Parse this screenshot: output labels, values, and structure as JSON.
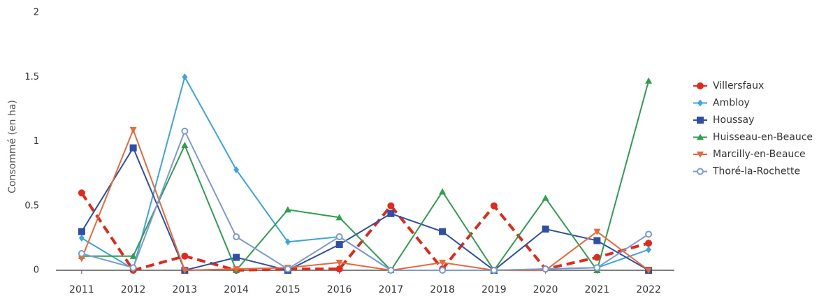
{
  "chart_data": {
    "type": "line",
    "y_label": "Consommé (en ha)",
    "categories": [
      "2011",
      "2012",
      "2013",
      "2014",
      "2015",
      "2016",
      "2017",
      "2018",
      "2019",
      "2020",
      "2021",
      "2022"
    ],
    "series": [
      {
        "name": "Villersfaux",
        "color": "#e02a1b",
        "marker": "circle",
        "dashed": true,
        "values": [
          0.6,
          0,
          0.11,
          0,
          0.01,
          0.01,
          0.5,
          0.01,
          0.5,
          0.01,
          0.1,
          0.21
        ]
      },
      {
        "name": "Ambloy",
        "color": "#3aa6dd",
        "marker": "diamond",
        "dashed": false,
        "values": [
          0.25,
          0.01,
          1.5,
          0.78,
          0.22,
          0.26,
          0,
          0,
          0,
          0.01,
          0.02,
          0.16
        ]
      },
      {
        "name": "Houssay",
        "color": "#2f4fa6",
        "marker": "square",
        "dashed": false,
        "values": [
          0.3,
          0.95,
          0,
          0.1,
          0,
          0.2,
          0.44,
          0.3,
          0,
          0.32,
          0.23,
          0
        ]
      },
      {
        "name": "Huisseau-en-Beauce",
        "color": "#2e9e4f",
        "marker": "triangle",
        "dashed": false,
        "values": [
          0.11,
          0.11,
          0.97,
          0,
          0.47,
          0.41,
          0,
          0.61,
          0,
          0.56,
          0,
          1.47
        ]
      },
      {
        "name": "Marcilly-en-Beauce",
        "color": "#e8693b",
        "marker": "triangle-down",
        "dashed": false,
        "values": [
          0.09,
          1.09,
          0,
          0.01,
          0.02,
          0.06,
          0,
          0.06,
          0,
          0,
          0.3,
          0
        ]
      },
      {
        "name": "Thoré-la-Rochette",
        "color": "#7b9bd1",
        "marker": "circle-open",
        "dashed": false,
        "values": [
          0.13,
          0.02,
          1.08,
          0.26,
          0.01,
          0.26,
          0,
          0,
          0,
          0.01,
          0.02,
          0.28
        ]
      }
    ],
    "ylim": [
      0,
      2
    ],
    "yticks": [
      0,
      0.5,
      1,
      1.5,
      2
    ],
    "grid": false,
    "legend": "right"
  }
}
